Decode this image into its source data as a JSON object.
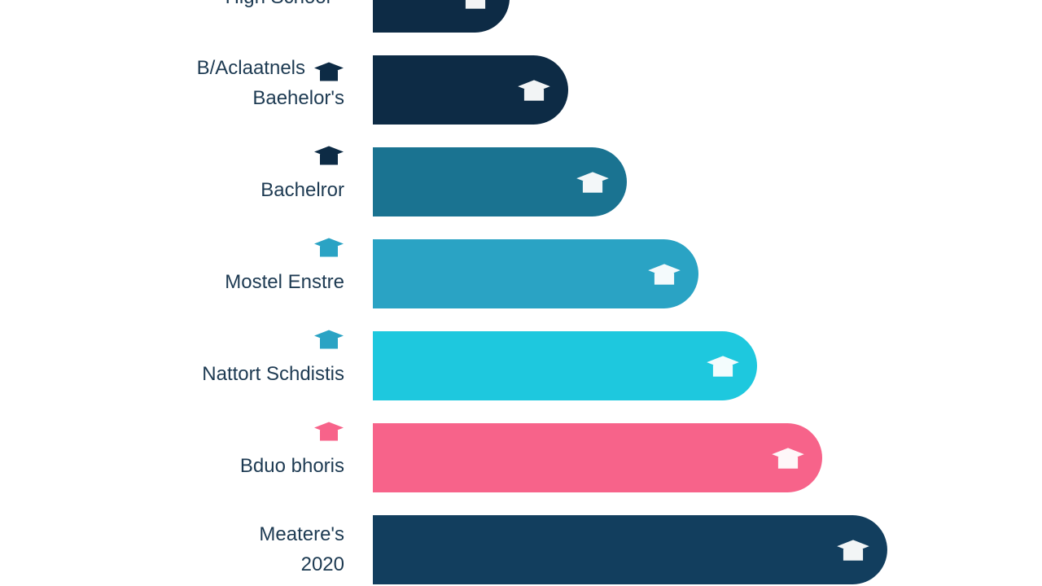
{
  "chart_data": {
    "type": "bar",
    "categories": [
      [
        "High School"
      ],
      [
        "B/Aclaatnels",
        "Baehelor's"
      ],
      [
        "Bachelror"
      ],
      [
        "Mostel Enstre"
      ],
      [
        "Nattort Schdistis"
      ],
      [
        "Bduo bhoris"
      ],
      [
        "Meatere's",
        "2020"
      ]
    ],
    "values": [
      21,
      30,
      39,
      50,
      59,
      69,
      79
    ],
    "colors": [
      "#0d2b45",
      "#0d2b45",
      "#1a7391",
      "#2aa3c4",
      "#1ec8de",
      "#f7638a",
      "#123e5e"
    ],
    "xlim": [
      0,
      100
    ]
  }
}
